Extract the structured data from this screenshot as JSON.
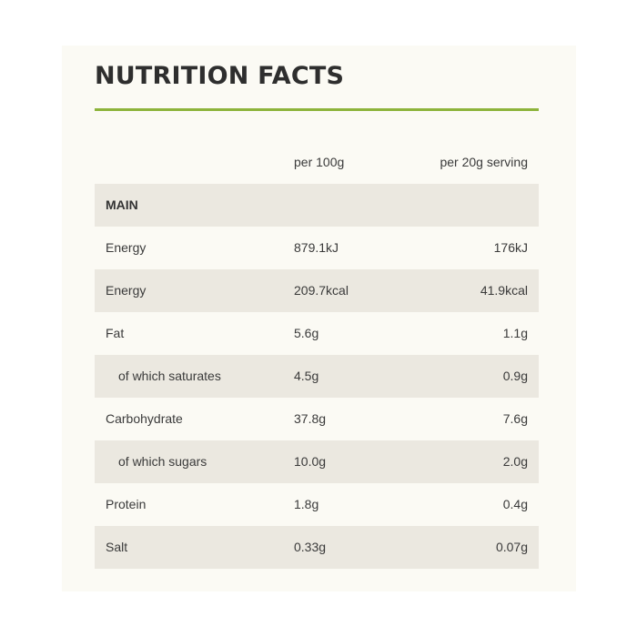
{
  "title": "NUTRITION FACTS",
  "colors": {
    "accent_rule": "#8db33b",
    "panel_bg": "#fbfaf4",
    "shaded_row": "#ebe8e0"
  },
  "table": {
    "headers": {
      "per100": "per 100g",
      "serving": "per 20g serving"
    },
    "section": "MAIN",
    "rows": [
      {
        "label": "Energy",
        "per100": "879.1kJ",
        "serving": "176kJ"
      },
      {
        "label": "Energy",
        "per100": "209.7kcal",
        "serving": "41.9kcal"
      },
      {
        "label": "Fat",
        "per100": "5.6g",
        "serving": "1.1g"
      },
      {
        "label": "of which saturates",
        "per100": "4.5g",
        "serving": "0.9g"
      },
      {
        "label": "Carbohydrate",
        "per100": "37.8g",
        "serving": "7.6g"
      },
      {
        "label": "of which sugars",
        "per100": "10.0g",
        "serving": "2.0g"
      },
      {
        "label": "Protein",
        "per100": "1.8g",
        "serving": "0.4g"
      },
      {
        "label": "Salt",
        "per100": "0.33g",
        "serving": "0.07g"
      }
    ]
  }
}
